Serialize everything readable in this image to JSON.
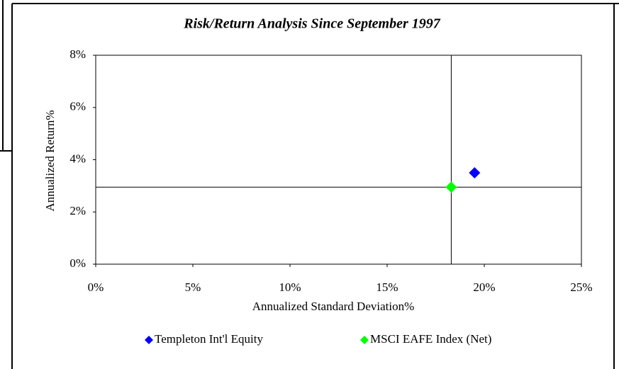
{
  "chart_data": {
    "type": "scatter",
    "title": "Risk/Return Analysis Since September 1997",
    "x_label": "Annualized Standard Deviation%",
    "y_label": "Annualized Return%",
    "series": [
      {
        "name": "Templeton Int'l Equity",
        "color": "#0000ff",
        "x": [
          19.5
        ],
        "values": [
          3.5
        ]
      },
      {
        "name": "MSCI EAFE Index (Net)",
        "color": "#00ff00",
        "x": [
          18.3
        ],
        "values": [
          2.95
        ]
      }
    ],
    "xlim": [
      0,
      25
    ],
    "xticks": [
      {
        "value": 0,
        "label": "0%"
      },
      {
        "value": 5,
        "label": "5%"
      },
      {
        "value": 10,
        "label": "10%"
      },
      {
        "value": 15,
        "label": "15%"
      },
      {
        "value": 20,
        "label": "20%"
      },
      {
        "value": 25,
        "label": "25%"
      }
    ],
    "ylim": [
      0,
      8
    ],
    "yticks": [
      {
        "value": 0,
        "label": "0%"
      },
      {
        "value": 2,
        "label": "2%"
      },
      {
        "value": 4,
        "label": "4%"
      },
      {
        "value": 6,
        "label": "6%"
      },
      {
        "value": 8,
        "label": "8%"
      }
    ],
    "grid": false,
    "legend": "bottom"
  }
}
